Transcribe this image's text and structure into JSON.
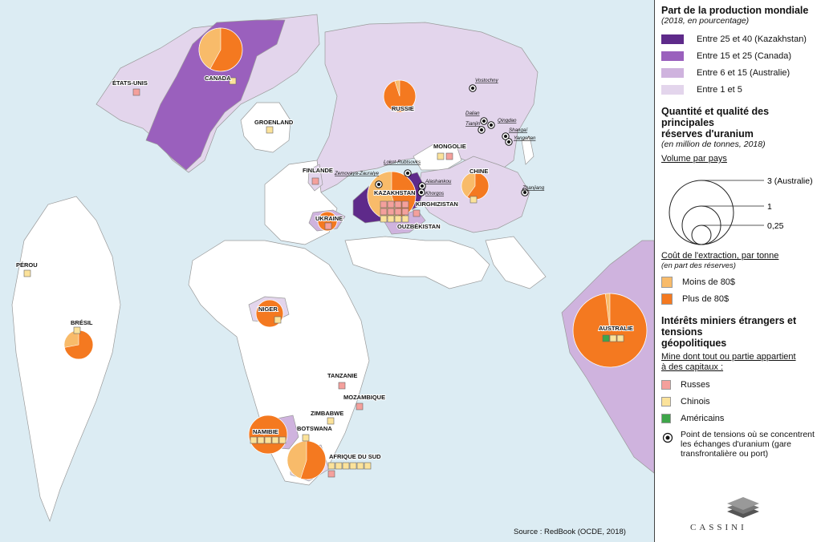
{
  "map": {
    "source": "Source : RedBook (OCDE, 2018)",
    "colors": {
      "ocean": "#dcecf3",
      "land": "#ffffff",
      "c1": "#e3d5ec",
      "c2": "#cfb3de",
      "c3": "#9a60bd",
      "c4": "#5e2a8a",
      "small": "#f8bb6a",
      "large": "#f47920",
      "ru": "#f4a09c",
      "cn": "#fbe29a",
      "us": "#3ea64a"
    },
    "countries": [
      {
        "name": "ÉTATS-UNIS"
      },
      {
        "name": "CANADA"
      },
      {
        "name": "GROENLAND"
      },
      {
        "name": "RUSSIE"
      },
      {
        "name": "MONGOLIE"
      },
      {
        "name": "FINLANDE"
      },
      {
        "name": "KAZAKHSTAN"
      },
      {
        "name": "CHINE"
      },
      {
        "name": "KIRGHIZISTAN"
      },
      {
        "name": "OUZBÉKISTAN"
      },
      {
        "name": "UKRAINE"
      },
      {
        "name": "PÉROU"
      },
      {
        "name": "BRÉSIL"
      },
      {
        "name": "NIGER"
      },
      {
        "name": "TANZANIE"
      },
      {
        "name": "MOZAMBIQUE"
      },
      {
        "name": "ZIMBABWE"
      },
      {
        "name": "BOTSWANA"
      },
      {
        "name": "NAMIBIE"
      },
      {
        "name": "AFRIQUE DU SUD"
      },
      {
        "name": "AUSTRALIE"
      }
    ],
    "tension_points": [
      "Vostochny",
      "Dalian",
      "Tianjin",
      "Qingdao",
      "Shangaï",
      "Yangshan",
      "Lokot-Rubtsovks",
      "Zemovaya-Zauralye",
      "Alashankou",
      "Khorgos",
      "Zhanjiang"
    ]
  },
  "legend": {
    "production_title": "Part de la production mondiale",
    "production_sub": "(2018, en pourcentage)",
    "production_classes": [
      {
        "label": "Entre 25 et 40 (Kazakhstan)",
        "color": "#5e2a8a"
      },
      {
        "label": "Entre 15 et 25 (Canada)",
        "color": "#9a60bd"
      },
      {
        "label": "Entre 6 et 15 (Australie)",
        "color": "#cfb3de"
      },
      {
        "label": "Entre 1 et 5",
        "color": "#e3d5ec"
      }
    ],
    "reserves_title_1": "Quantité et qualité des principales",
    "reserves_title_2": "réserves d'uranium",
    "reserves_sub": "(en million de tonnes, 2018)",
    "volume_title": "Volume par pays",
    "volume_labels": [
      "3 (Australie)",
      "1",
      "0,25"
    ],
    "cost_title": "Coût de l'extraction, par tonne",
    "cost_sub": "(en part des réserves)",
    "cost_classes": [
      {
        "label": "Moins de 80$",
        "color": "#f8bb6a"
      },
      {
        "label": "Plus de 80$",
        "color": "#f47920"
      }
    ],
    "mining_title_1": "Intérêts miniers étrangers et tensions",
    "mining_title_2": "géopolitiques",
    "mine_owner_1": "Mine dont tout ou partie appartient",
    "mine_owner_2": "à des capitaux :",
    "owners": [
      {
        "label": "Russes",
        "color": "#f4a09c"
      },
      {
        "label": "Chinois",
        "color": "#fbe29a"
      },
      {
        "label": "Américains",
        "color": "#3ea64a"
      }
    ],
    "tension_1": "Point de tensions où se concentrent",
    "tension_2": "les échanges d'uranium (gare",
    "tension_3": "transfrontalière ou port)",
    "publisher": "CASSINI"
  }
}
